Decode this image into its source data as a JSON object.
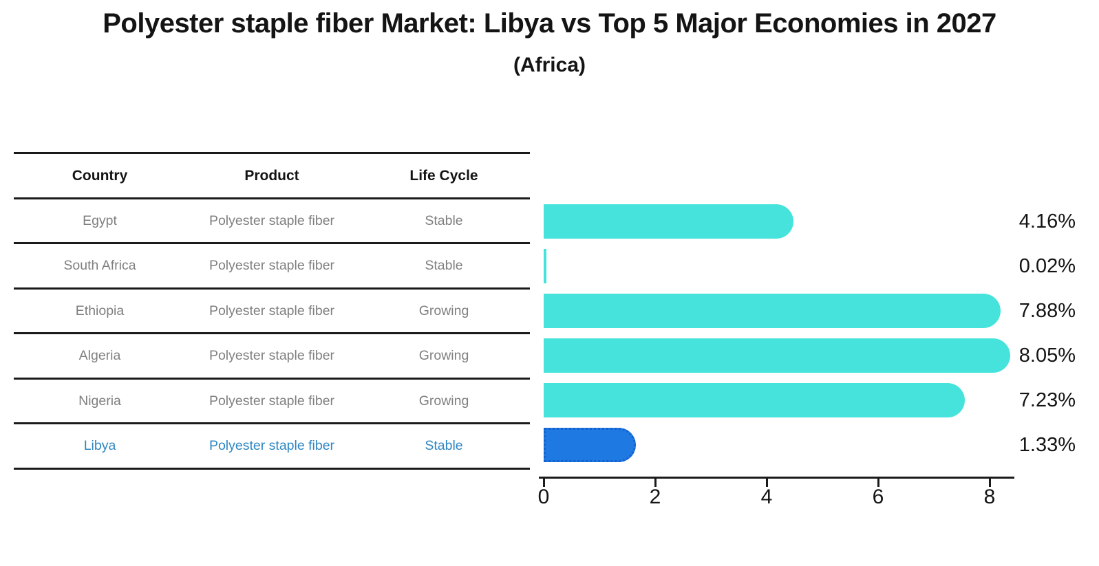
{
  "title": "Polyester staple fiber Market: Libya vs Top 5 Major Economies in 2027",
  "subtitle": "(Africa)",
  "table": {
    "columns": [
      "Country",
      "Product",
      "Life Cycle"
    ],
    "rows": [
      {
        "country": "Egypt",
        "product": "Polyester staple fiber",
        "life_cycle": "Stable",
        "highlight": false
      },
      {
        "country": "South Africa",
        "product": "Polyester staple fiber",
        "life_cycle": "Stable",
        "highlight": false
      },
      {
        "country": "Ethiopia",
        "product": "Polyester staple fiber",
        "life_cycle": "Growing",
        "highlight": false
      },
      {
        "country": "Algeria",
        "product": "Polyester staple fiber",
        "life_cycle": "Growing",
        "highlight": false
      },
      {
        "country": "Nigeria",
        "product": "Polyester staple fiber",
        "life_cycle": "Growing",
        "highlight": false
      },
      {
        "country": "Libya",
        "product": "Polyester staple fiber",
        "life_cycle": "Stable",
        "highlight": true
      }
    ]
  },
  "chart_data": {
    "type": "bar",
    "orientation": "horizontal",
    "title": "Polyester staple fiber Market: Libya vs Top 5 Major Economies in 2027",
    "subtitle": "(Africa)",
    "categories": [
      "Egypt",
      "South Africa",
      "Ethiopia",
      "Algeria",
      "Nigeria",
      "Libya"
    ],
    "values": [
      4.16,
      0.02,
      7.88,
      8.05,
      7.23,
      1.33
    ],
    "labels": [
      "4.16%",
      "0.02%",
      "7.88%",
      "8.05%",
      "7.23%",
      "1.33%"
    ],
    "unit": "%",
    "xticks": [
      0,
      2,
      4,
      6,
      8
    ],
    "xlim": [
      0,
      8.45
    ],
    "grid": false,
    "legend_position": "none",
    "bar_color": "#45E3DC",
    "highlight_color": "#1E79E3",
    "highlight_index": 5
  },
  "colors": {
    "accent_text": "#2E86C1",
    "row_text": "#7F7F7F",
    "header_text": "#141414",
    "axis": "#1A1A1A",
    "background": "#FFFFFF"
  }
}
